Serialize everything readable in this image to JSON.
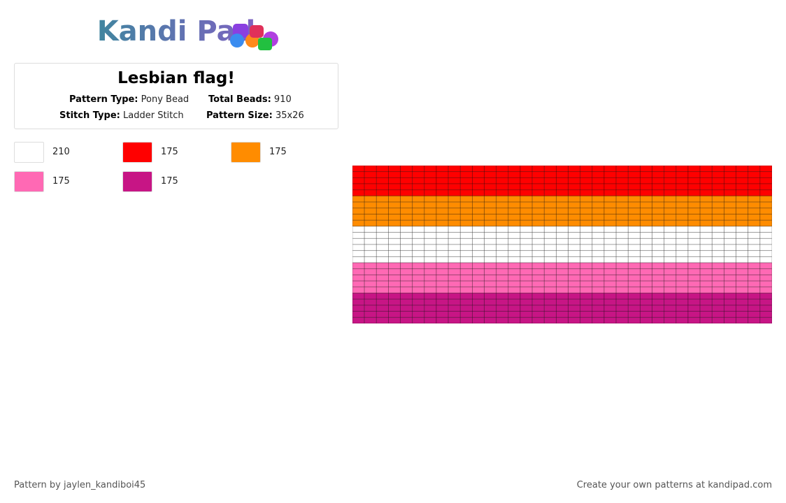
{
  "header": {
    "logo": "Kandi Pad"
  },
  "card": {
    "title": "Lesbian flag!",
    "fields": [
      {
        "label": "Pattern Type:",
        "value": "Pony Bead"
      },
      {
        "label": "Total Beads:",
        "value": 910
      },
      {
        "label": "Stitch Type:",
        "value": "Ladder Stitch"
      },
      {
        "label": "Pattern Size:",
        "value": "35x26"
      }
    ]
  },
  "palette": [
    {
      "color": "#ffffff",
      "count": 210
    },
    {
      "color": "#ff0000",
      "count": 175
    },
    {
      "color": "#ff8c00",
      "count": 175
    },
    {
      "color": "#ff69b4",
      "count": 175
    },
    {
      "color": "#c71585",
      "count": 175
    }
  ],
  "pattern": {
    "columns": 35,
    "rows": [
      1,
      1,
      1,
      1,
      1,
      2,
      2,
      2,
      2,
      2,
      0,
      0,
      0,
      0,
      0,
      0,
      3,
      3,
      3,
      3,
      3,
      4,
      4,
      4,
      4,
      4
    ]
  },
  "footer": {
    "left": "Pattern by jaylen_kandiboi45",
    "right": "Create your own patterns at kandipad.com"
  }
}
